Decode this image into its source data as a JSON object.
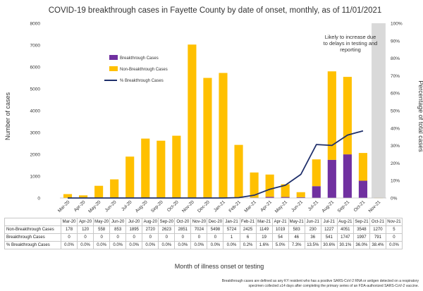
{
  "chart_data": {
    "type": "bar",
    "title": "COVID-19 breakthrough cases in Fayette County by date of onset, monthly, as of 11/01/2021",
    "xlabel": "Month of illness onset or testing",
    "ylabel": "Number of cases",
    "y2label": "Percentage of total cases",
    "ylim": [
      0,
      8000
    ],
    "y2lim": [
      0,
      100
    ],
    "yticks": [
      "0",
      "1000",
      "2000",
      "3000",
      "4000",
      "5000",
      "6000",
      "7000",
      "8000"
    ],
    "y2ticks": [
      "0%",
      "10%",
      "20%",
      "30%",
      "40%",
      "50%",
      "60%",
      "70%",
      "80%",
      "90%",
      "100%"
    ],
    "categories": [
      "Mar-20",
      "Apr-20",
      "May-20",
      "Jun-20",
      "Jul-20",
      "Aug-20",
      "Sep-20",
      "Oct-20",
      "Nov-20",
      "Dec-20",
      "Jan-21",
      "Feb-21",
      "Mar-21",
      "Apr-21",
      "May-21",
      "Jun-21",
      "Jul-21",
      "Aug-21",
      "Sep-21",
      "Oct-21",
      "Nov-21"
    ],
    "series": [
      {
        "name": "Non-Breakthrough Cases",
        "table_label": "Non-Breakthrough Cases",
        "kind": "stacked-bar",
        "color": "#FFC000",
        "values": [
          178,
          120,
          558,
          853,
          1895,
          2720,
          2623,
          2851,
          7024,
          5498,
          5724,
          2425,
          1149,
          1019,
          583,
          230,
          1227,
          4051,
          3548,
          1270,
          5
        ],
        "display": [
          "178",
          "120",
          "558",
          "853",
          "1895",
          "2720",
          "2623",
          "2851",
          "7024",
          "5498",
          "5724",
          "2425",
          "1149",
          "1019",
          "583",
          "230",
          "1227",
          "4051",
          "3548",
          "1270",
          "5"
        ]
      },
      {
        "name": "Breakthrough Cases",
        "table_label": "Breakthrough Cases",
        "kind": "stacked-bar",
        "color": "#7030A0",
        "values": [
          0,
          0,
          0,
          0,
          0,
          0,
          0,
          0,
          0,
          0,
          1,
          6,
          19,
          54,
          46,
          36,
          541,
          1747,
          1997,
          791,
          0
        ],
        "display": [
          "0",
          "0",
          "0",
          "0",
          "0",
          "0",
          "0",
          "0",
          "0",
          "0",
          "1",
          "6",
          "19",
          "54",
          "46",
          "36",
          "541",
          "1747",
          "1997",
          "791",
          "0"
        ]
      },
      {
        "name": "% Breakthrough Cases",
        "table_label": "% Breakthrough Cases",
        "kind": "line",
        "axis": "secondary",
        "color": "#1F2F6B",
        "values": [
          0.0,
          0.0,
          0.0,
          0.0,
          0.0,
          0.0,
          0.0,
          0.0,
          0.0,
          0.0,
          0.0,
          0.2,
          1.6,
          5.0,
          7.3,
          13.5,
          30.6,
          30.1,
          36.0,
          38.4,
          null
        ],
        "display": [
          "0.0%",
          "0.0%",
          "0.0%",
          "0.0%",
          "0.0%",
          "0.0%",
          "0.0%",
          "0.0%",
          "0.0%",
          "0.0%",
          "0.0%",
          "0.2%",
          "1.6%",
          "5.0%",
          "7.3%",
          "13.5%",
          "30.6%",
          "30.1%",
          "36.0%",
          "38.4%",
          "0.0%"
        ]
      }
    ],
    "legend_order": [
      1,
      0,
      2
    ],
    "legend_placement": "upper-left inside plot",
    "grid": false,
    "shaded_category": "Nov-21",
    "shade_color": "#D9D9D9",
    "annotation": [
      "Likely to increase due",
      "to delays in testing and",
      "reporting"
    ],
    "footnote": [
      "Breakthrough cases are defined as any KY resident who has a positive SARS-CoV-2 RNA or antigen detected on a respiratory",
      "specimen collected ≥14 days after completing the primary series of an FDA-authorized SARS-CoV-2 vaccine."
    ]
  }
}
